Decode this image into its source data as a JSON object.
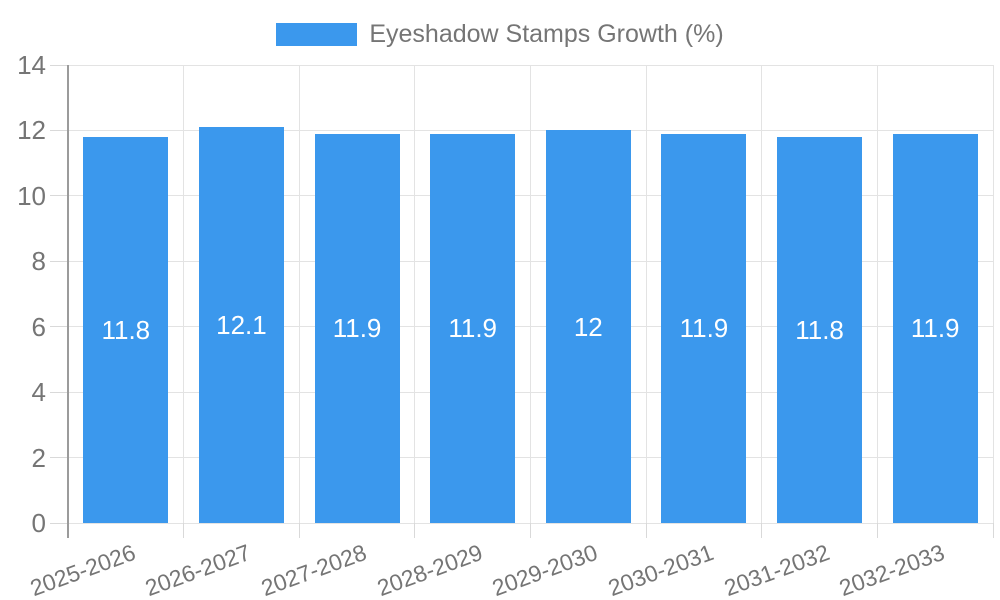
{
  "legend": {
    "label": "Eyeshadow Stamps Growth (%)"
  },
  "chart_data": {
    "type": "bar",
    "title": "",
    "categories": [
      "2025-2026",
      "2026-2027",
      "2027-2028",
      "2028-2029",
      "2029-2030",
      "2030-2031",
      "2031-2032",
      "2032-2033"
    ],
    "series": [
      {
        "name": "Eyeshadow Stamps Growth (%)",
        "values": [
          11.8,
          12.1,
          11.9,
          11.9,
          12,
          11.9,
          11.8,
          11.9
        ],
        "color": "#3b98ed"
      }
    ],
    "value_labels": [
      "11.8",
      "12.1",
      "11.9",
      "11.9",
      "12",
      "11.9",
      "11.8",
      "11.9"
    ],
    "xlabel": "",
    "ylabel": "",
    "ylim": [
      0,
      14
    ],
    "yticks": [
      0,
      2,
      4,
      6,
      8,
      10,
      12,
      14
    ],
    "grid": true,
    "legend_position": "top-center",
    "x_label_rotation_deg": -20,
    "value_label_color": "#ffffff"
  },
  "colors": {
    "bar": "#3b98ed",
    "grid": "#e3e3e3",
    "axis_line": "#9b9b9b",
    "tick_mark": "#d9d9d9",
    "tick_text": "#757575",
    "legend_text": "#757575",
    "background": "#ffffff"
  }
}
